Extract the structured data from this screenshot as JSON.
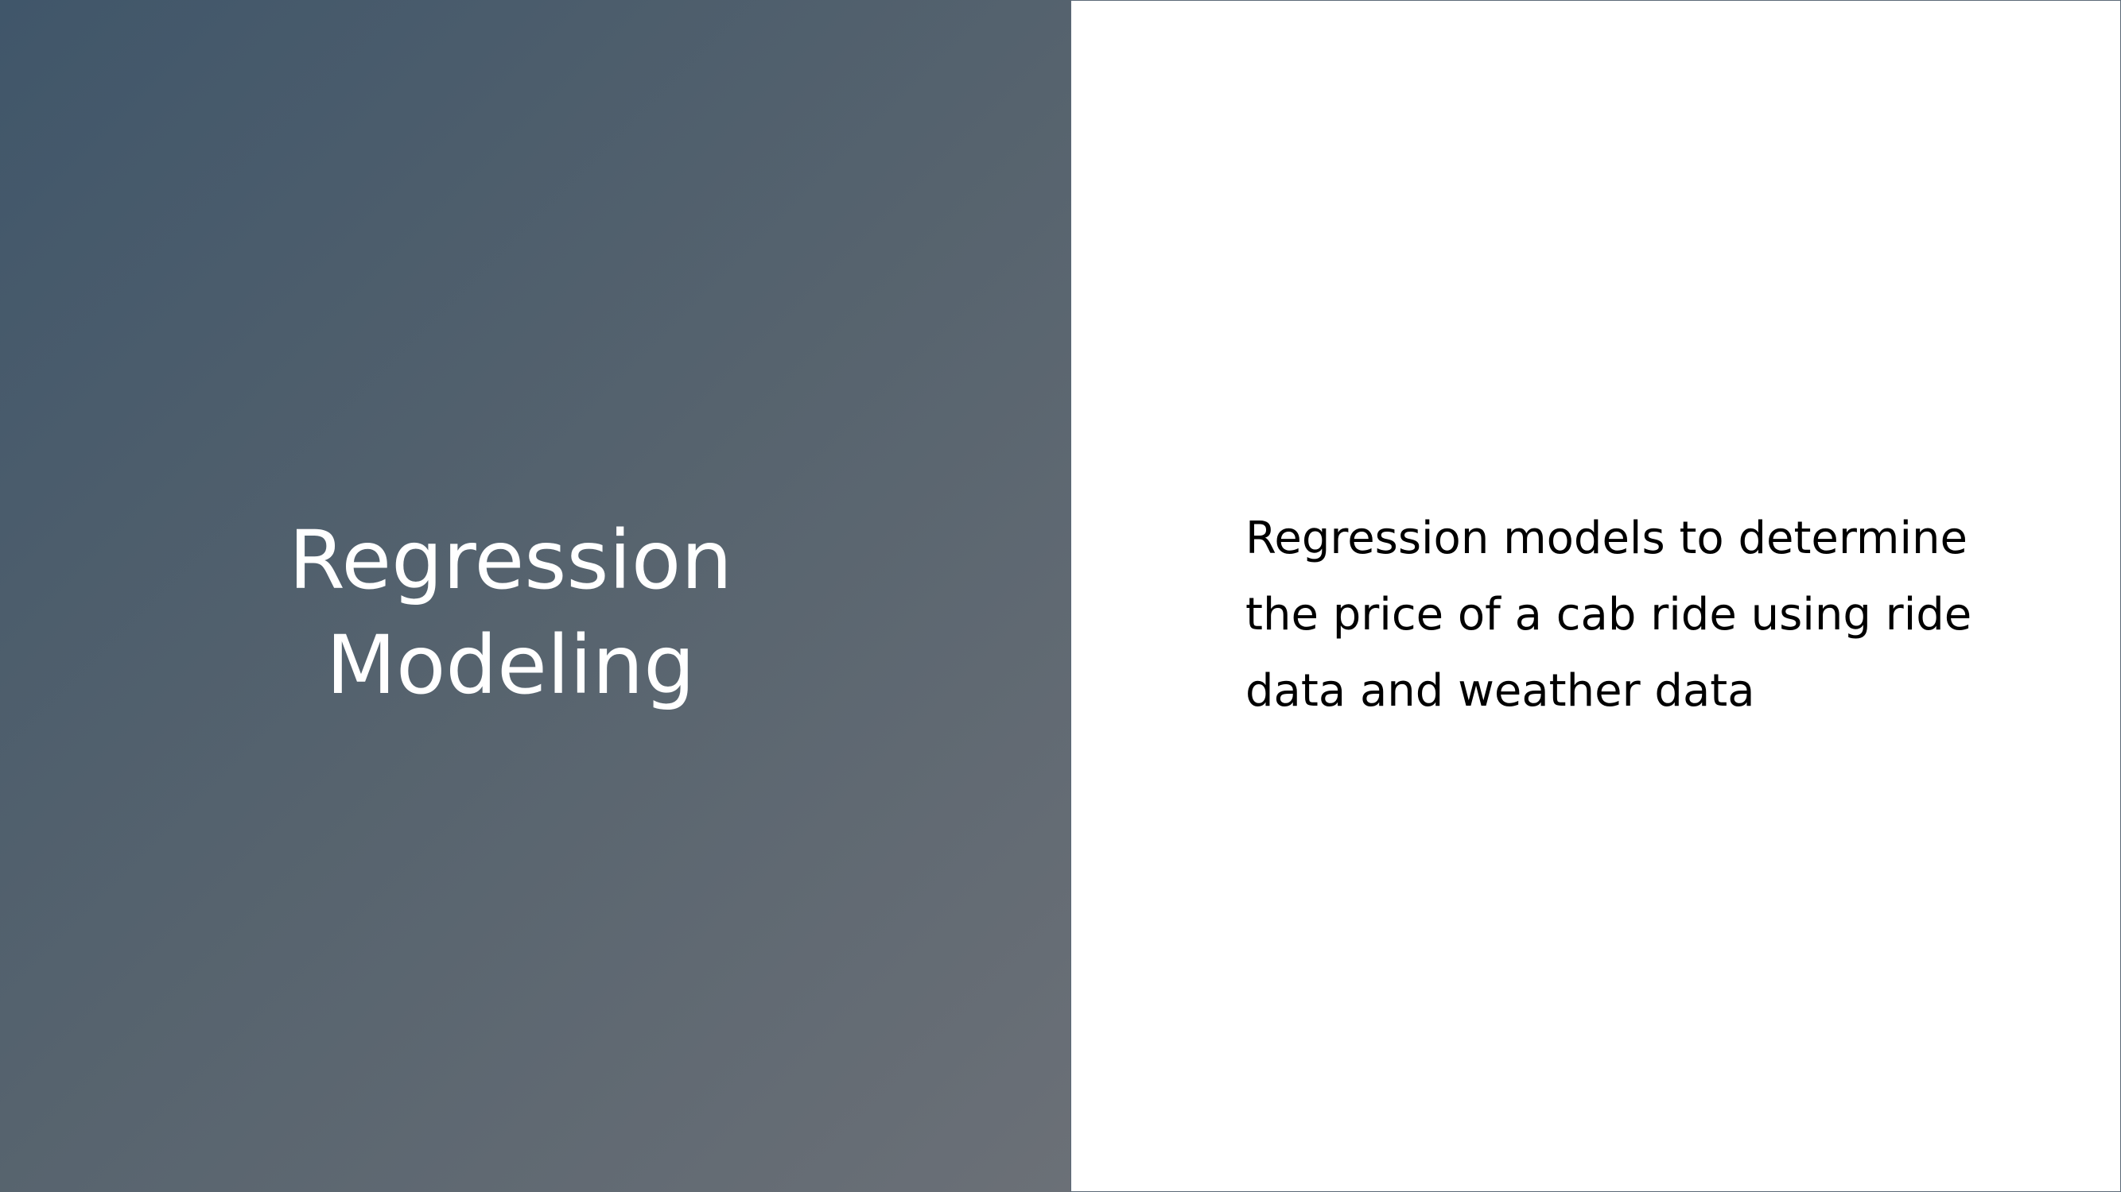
{
  "slide": {
    "title_lines": [
      "Regression",
      "Modeling"
    ],
    "body_lines": [
      "Regression models to determine",
      "the price of a cab ride using ride",
      "data and weather data"
    ]
  },
  "colors": {
    "panel_gradient_start": "#40566a",
    "panel_gradient_end": "#6b7077",
    "title_text": "#ffffff",
    "body_text": "#000000"
  }
}
